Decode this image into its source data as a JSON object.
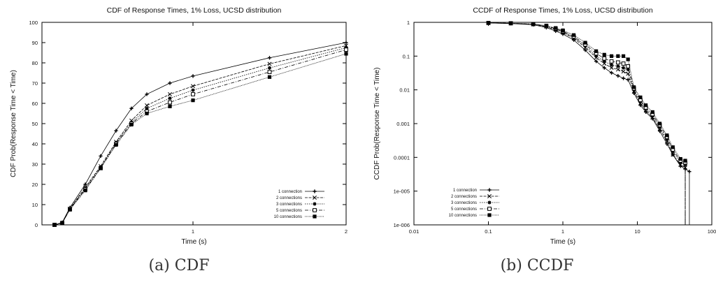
{
  "captions": {
    "a": "(a) CDF",
    "b": "(b) CCDF"
  },
  "chart_data": [
    {
      "type": "line",
      "title": "CDF of Response Times, 1% Loss, UCSD distribution",
      "xlabel": "Time (s)",
      "ylabel": "CDF Prob(Response Time < Time)",
      "xscale": "linear-tail",
      "xticks": [
        "1",
        "2"
      ],
      "ylim": [
        0,
        100
      ],
      "yticks": [
        0,
        10,
        20,
        30,
        40,
        50,
        60,
        70,
        80,
        90,
        100
      ],
      "grid": false,
      "legend_position": "bottom-right",
      "x": [
        0.1,
        0.15,
        0.2,
        0.3,
        0.4,
        0.5,
        0.6,
        0.7,
        0.85,
        1.0,
        1.5,
        2.0
      ],
      "series": [
        {
          "name": "1 connection",
          "marker": "plus",
          "values": [
            0,
            1.2,
            8.5,
            20,
            34,
            46.5,
            57.5,
            64.5,
            70,
            73.5,
            82.5,
            90
          ]
        },
        {
          "name": "2 connections",
          "marker": "cross",
          "values": [
            0,
            1.0,
            8.0,
            18.5,
            29,
            41,
            51.5,
            59,
            64.5,
            68.5,
            79.5,
            88.5
          ]
        },
        {
          "name": "3 connections",
          "marker": "star",
          "values": [
            0,
            1.0,
            7.8,
            18,
            28.5,
            40.5,
            50.5,
            57.5,
            62.5,
            66.5,
            77.5,
            87.5
          ]
        },
        {
          "name": "5 connections",
          "marker": "open-square",
          "values": [
            0,
            0.9,
            7.7,
            17.5,
            28,
            40,
            50,
            56,
            60.5,
            64.5,
            75.5,
            86.5
          ]
        },
        {
          "name": "10 connections",
          "marker": "filled-square",
          "values": [
            0,
            0.8,
            7.5,
            17,
            28,
            39.5,
            49.5,
            55,
            58.5,
            61.5,
            73,
            84.5
          ]
        }
      ]
    },
    {
      "type": "line",
      "title": "CCDF of Response Times, 1% Loss, UCSD distribution",
      "xlabel": "Time (s)",
      "ylabel": "CCDF Prob(Response Time < Time)",
      "xscale": "log",
      "yscale": "log",
      "xlim": [
        0.01,
        100
      ],
      "ylim": [
        1e-06,
        1
      ],
      "xticks": [
        "0.01",
        "0.1",
        "1",
        "10",
        "100"
      ],
      "yticks": [
        "1e-006",
        "1e-005",
        "0.0001",
        "0.001",
        "0.01",
        "0.1",
        "1"
      ],
      "grid": false,
      "legend_position": "bottom-left",
      "series": [
        {
          "name": "1 connection",
          "marker": "plus",
          "x": [
            0.1,
            0.2,
            0.4,
            0.6,
            0.8,
            1.0,
            1.4,
            2.0,
            2.8,
            3.6,
            4.5,
            5.5,
            6.5,
            7.5,
            9,
            11,
            13,
            16,
            20,
            25,
            30,
            38,
            44,
            50
          ],
          "y": [
            0.96,
            0.92,
            0.85,
            0.7,
            0.55,
            0.45,
            0.3,
            0.15,
            0.07,
            0.045,
            0.032,
            0.026,
            0.022,
            0.02,
            0.008,
            0.0035,
            0.0022,
            0.0014,
            0.0006,
            0.00025,
            0.00012,
            5.5e-05,
            4.5e-05,
            3.8e-05
          ]
        },
        {
          "name": "2 connections",
          "marker": "cross",
          "x": [
            0.1,
            0.2,
            0.4,
            0.6,
            0.8,
            1.0,
            1.4,
            2.0,
            2.8,
            3.6,
            4.5,
            5.5,
            6.5,
            7.5,
            9,
            11,
            13,
            16,
            20,
            25,
            30,
            38,
            44
          ],
          "y": [
            0.96,
            0.93,
            0.87,
            0.74,
            0.6,
            0.5,
            0.34,
            0.18,
            0.09,
            0.06,
            0.045,
            0.04,
            0.035,
            0.03,
            0.009,
            0.004,
            0.0025,
            0.0015,
            0.0007,
            0.0003,
            0.00012,
            6e-05,
            5e-05
          ]
        },
        {
          "name": "3 connections",
          "marker": "star",
          "x": [
            0.1,
            0.2,
            0.4,
            0.6,
            0.8,
            1.0,
            1.4,
            2.0,
            2.8,
            3.6,
            4.5,
            5.5,
            6.5,
            7.5,
            9,
            11,
            13,
            16,
            20,
            25,
            30,
            38,
            44
          ],
          "y": [
            0.96,
            0.93,
            0.88,
            0.76,
            0.62,
            0.52,
            0.36,
            0.2,
            0.1,
            0.07,
            0.055,
            0.05,
            0.045,
            0.04,
            0.01,
            0.0045,
            0.0028,
            0.0017,
            0.0008,
            0.00035,
            0.00015,
            7e-05,
            6e-05
          ]
        },
        {
          "name": "5 connections",
          "marker": "open-square",
          "x": [
            0.1,
            0.2,
            0.4,
            0.6,
            0.8,
            1.0,
            1.4,
            2.0,
            2.8,
            3.6,
            4.5,
            5.5,
            6.5,
            7.5,
            9,
            11,
            13,
            16,
            20,
            25,
            30,
            38,
            44
          ],
          "y": [
            0.96,
            0.94,
            0.89,
            0.78,
            0.65,
            0.55,
            0.38,
            0.22,
            0.12,
            0.085,
            0.07,
            0.065,
            0.06,
            0.05,
            0.011,
            0.005,
            0.003,
            0.0019,
            0.0009,
            0.0004,
            0.00017,
            8e-05,
            7e-05
          ]
        },
        {
          "name": "10 connections",
          "marker": "filled-square",
          "x": [
            0.1,
            0.2,
            0.4,
            0.6,
            0.8,
            1.0,
            1.4,
            2.0,
            2.8,
            3.6,
            4.5,
            5.5,
            6.5,
            7.5,
            9,
            11,
            13,
            16,
            20,
            25,
            30,
            38,
            44
          ],
          "y": [
            0.96,
            0.94,
            0.9,
            0.8,
            0.68,
            0.58,
            0.42,
            0.25,
            0.14,
            0.11,
            0.1,
            0.1,
            0.1,
            0.08,
            0.012,
            0.006,
            0.0035,
            0.0022,
            0.001,
            0.00045,
            0.0002,
            9e-05,
            8e-05
          ]
        }
      ]
    }
  ]
}
